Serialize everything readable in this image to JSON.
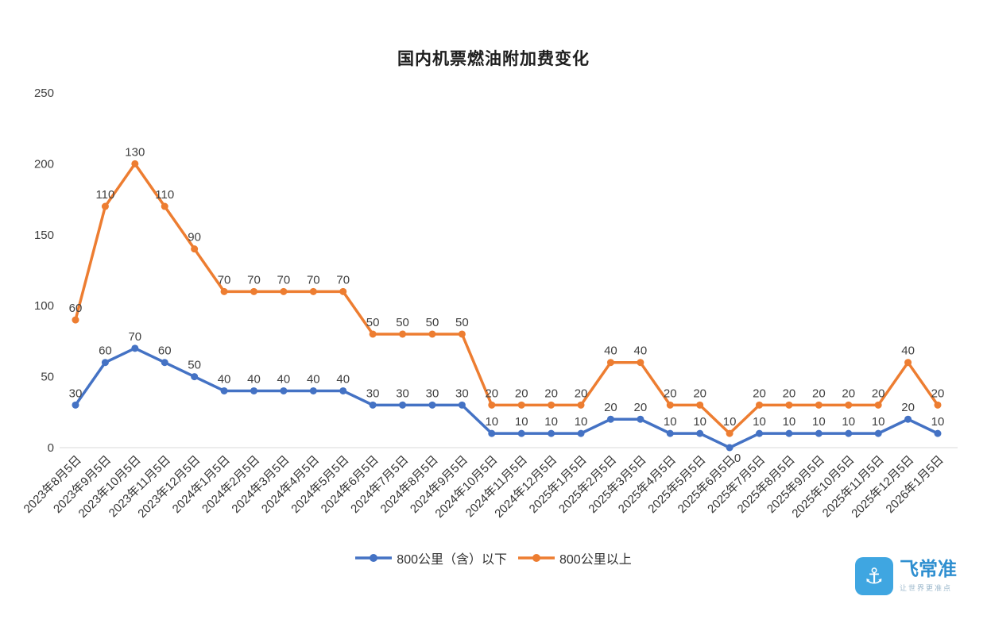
{
  "chart_data": {
    "type": "line",
    "title": "国内机票燃油附加费变化",
    "stacked": true,
    "grid": false,
    "legend_position": "bottom",
    "ylim": [
      0,
      250
    ],
    "yticks": [
      0,
      50,
      100,
      150,
      200,
      250
    ],
    "categories": [
      "2023年8月5日",
      "2023年9月5日",
      "2023年10月5日",
      "2023年11月5日",
      "2023年12月5日",
      "2024年1月5日",
      "2024年2月5日",
      "2024年3月5日",
      "2024年4月5日",
      "2024年5月5日",
      "2024年6月5日",
      "2024年7月5日",
      "2024年8月5日",
      "2024年9月5日",
      "2024年10月5日",
      "2024年11月5日",
      "2024年12月5日",
      "2025年1月5日",
      "2025年2月5日",
      "2025年3月5日",
      "2025年4月5日",
      "2025年5月5日",
      "2025年6月5日",
      "2025年7月5日",
      "2025年8月5日",
      "2025年9月5日",
      "2025年10月5日",
      "2025年11月5日",
      "2025年12月5日",
      "2026年1月5日"
    ],
    "series": [
      {
        "name": "800公里（含）以下",
        "color": "#4472C4",
        "values": [
          30,
          60,
          70,
          60,
          50,
          40,
          40,
          40,
          40,
          40,
          30,
          30,
          30,
          30,
          10,
          10,
          10,
          10,
          20,
          20,
          10,
          10,
          0,
          10,
          10,
          10,
          10,
          10,
          20,
          10
        ]
      },
      {
        "name": "800公里以上",
        "color": "#ED7D31",
        "values": [
          60,
          110,
          130,
          110,
          90,
          70,
          70,
          70,
          70,
          70,
          50,
          50,
          50,
          50,
          20,
          20,
          20,
          20,
          40,
          40,
          20,
          20,
          10,
          20,
          20,
          20,
          20,
          20,
          40,
          20
        ]
      }
    ]
  },
  "logo": {
    "name": "飞常准",
    "tagline": "让世界更准点"
  }
}
